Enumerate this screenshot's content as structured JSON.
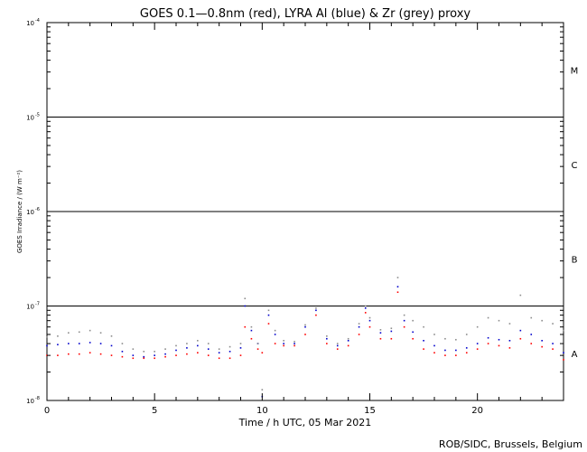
{
  "chart_data": {
    "type": "scatter",
    "title": "GOES 0.1—0.8nm (red), LYRA Al (blue) & Zr (grey) proxy",
    "xlabel": "Time / h UTC, 05 Mar 2021",
    "ylabel": "GOES Irradiance / (W m⁻²)",
    "credit": "ROB/SIDC, Brussels, Belgium",
    "xlim": [
      0,
      24
    ],
    "ylim": [
      1e-08,
      0.0001
    ],
    "y_scale": "log",
    "x_ticks": [
      0,
      5,
      10,
      15,
      20
    ],
    "y_ticks": [
      {
        "mant": "10",
        "exp": "-8",
        "value": 1e-08
      },
      {
        "mant": "10",
        "exp": "-7",
        "value": 1e-07
      },
      {
        "mant": "10",
        "exp": "-6",
        "value": 1e-06
      },
      {
        "mant": "10",
        "exp": "-5",
        "value": 1e-05
      },
      {
        "mant": "10",
        "exp": "-4",
        "value": 0.0001
      }
    ],
    "flare_class_lines": [
      1e-07,
      1e-06,
      1e-05
    ],
    "flare_classes": [
      {
        "label": "A",
        "value": 3.16e-08
      },
      {
        "label": "B",
        "value": 3.16e-07
      },
      {
        "label": "C",
        "value": 3.16e-06
      },
      {
        "label": "M",
        "value": 3.16e-05
      }
    ],
    "series": [
      {
        "name": "GOES 0.1—0.8nm",
        "color": "#ff0000",
        "x": [
          0,
          0.5,
          1,
          1.5,
          2,
          2.5,
          3,
          3.5,
          4,
          4.5,
          5,
          5.5,
          6,
          6.5,
          7,
          7.5,
          8,
          8.5,
          9,
          9.2,
          9.5,
          9.8,
          10,
          10.3,
          10.6,
          11,
          11.5,
          12,
          12.5,
          13,
          13.5,
          14,
          14.5,
          14.8,
          15,
          15.5,
          16,
          16.3,
          16.6,
          17,
          17.5,
          18,
          18.5,
          19,
          19.5,
          20,
          20.5,
          21,
          21.5,
          22,
          22.5,
          23,
          23.5,
          24
        ],
        "y": [
          3e-08,
          3e-08,
          3.1e-08,
          3.1e-08,
          3.2e-08,
          3.1e-08,
          3e-08,
          2.9e-08,
          2.8e-08,
          2.8e-08,
          2.8e-08,
          2.9e-08,
          3e-08,
          3.1e-08,
          3.2e-08,
          3e-08,
          2.8e-08,
          2.8e-08,
          3e-08,
          6e-08,
          4.5e-08,
          3.5e-08,
          3.2e-08,
          6.5e-08,
          4e-08,
          3.8e-08,
          3.8e-08,
          5e-08,
          8e-08,
          4e-08,
          3.5e-08,
          3.8e-08,
          5e-08,
          8.5e-08,
          6e-08,
          4.5e-08,
          4.5e-08,
          1.4e-07,
          6e-08,
          4.5e-08,
          3.5e-08,
          3.2e-08,
          3e-08,
          3e-08,
          3.2e-08,
          3.5e-08,
          4e-08,
          3.8e-08,
          3.6e-08,
          4.5e-08,
          4e-08,
          3.7e-08,
          3.5e-08,
          2.7e-08
        ]
      },
      {
        "name": "LYRA Al",
        "color": "#0000cc",
        "x": [
          0,
          0.5,
          1,
          1.5,
          2,
          2.5,
          3,
          3.5,
          4,
          4.5,
          5,
          5.5,
          6,
          6.5,
          7,
          7.5,
          8,
          8.5,
          9,
          9.2,
          9.5,
          9.8,
          10,
          10.3,
          10.6,
          11,
          11.5,
          12,
          12.5,
          13,
          13.5,
          14,
          14.5,
          14.8,
          15,
          15.5,
          16,
          16.3,
          16.6,
          17,
          17.5,
          18,
          18.5,
          19,
          19.5,
          20,
          20.5,
          21,
          21.5,
          22,
          22.5,
          23,
          23.5,
          24
        ],
        "y": [
          3.8e-08,
          3.9e-08,
          4e-08,
          4e-08,
          4.1e-08,
          4e-08,
          3.8e-08,
          3.3e-08,
          3e-08,
          2.9e-08,
          3e-08,
          3.1e-08,
          3.4e-08,
          3.6e-08,
          3.8e-08,
          3.5e-08,
          3.2e-08,
          3.3e-08,
          3.6e-08,
          1e-07,
          5.5e-08,
          4e-08,
          1.1e-08,
          8e-08,
          5e-08,
          4e-08,
          4e-08,
          6e-08,
          9e-08,
          4.5e-08,
          3.8e-08,
          4.3e-08,
          6e-08,
          9.5e-08,
          7e-08,
          5.2e-08,
          5.4e-08,
          1.6e-07,
          7e-08,
          5.3e-08,
          4.3e-08,
          3.8e-08,
          3.4e-08,
          3.4e-08,
          3.6e-08,
          4e-08,
          4.6e-08,
          4.4e-08,
          4.3e-08,
          5.5e-08,
          5e-08,
          4.3e-08,
          4e-08,
          3.2e-08
        ]
      },
      {
        "name": "LYRA Zr",
        "color": "#8c8c8c",
        "x": [
          0,
          0.5,
          1,
          1.5,
          2,
          2.5,
          3,
          3.5,
          4,
          4.5,
          5,
          5.5,
          6,
          6.5,
          7,
          7.5,
          8,
          8.5,
          9,
          9.2,
          9.5,
          9.8,
          10,
          10.3,
          10.6,
          11,
          11.5,
          12,
          12.5,
          13,
          13.5,
          14,
          14.5,
          14.8,
          15,
          15.5,
          16,
          16.3,
          16.6,
          17,
          17.5,
          18,
          18.5,
          19,
          19.5,
          20,
          20.5,
          21,
          21.5,
          22,
          22.5,
          23,
          23.5,
          24
        ],
        "y": [
          4.7e-08,
          4.8e-08,
          5.2e-08,
          5.3e-08,
          5.5e-08,
          5.2e-08,
          4.8e-08,
          4e-08,
          3.5e-08,
          3.3e-08,
          3.3e-08,
          3.5e-08,
          3.8e-08,
          4e-08,
          4.3e-08,
          4e-08,
          3.5e-08,
          3.7e-08,
          4e-08,
          1.2e-07,
          6e-08,
          4e-08,
          1.3e-08,
          9e-08,
          5.5e-08,
          4.3e-08,
          4.2e-08,
          6.3e-08,
          9.5e-08,
          4.8e-08,
          4e-08,
          4.5e-08,
          6.5e-08,
          1e-07,
          7.5e-08,
          5.6e-08,
          5.8e-08,
          2e-07,
          8e-08,
          7e-08,
          6e-08,
          5e-08,
          4.5e-08,
          4.4e-08,
          5e-08,
          6e-08,
          7.5e-08,
          7e-08,
          6.5e-08,
          1.3e-07,
          7.5e-08,
          7e-08,
          6.5e-08,
          5.5e-08
        ]
      }
    ]
  }
}
